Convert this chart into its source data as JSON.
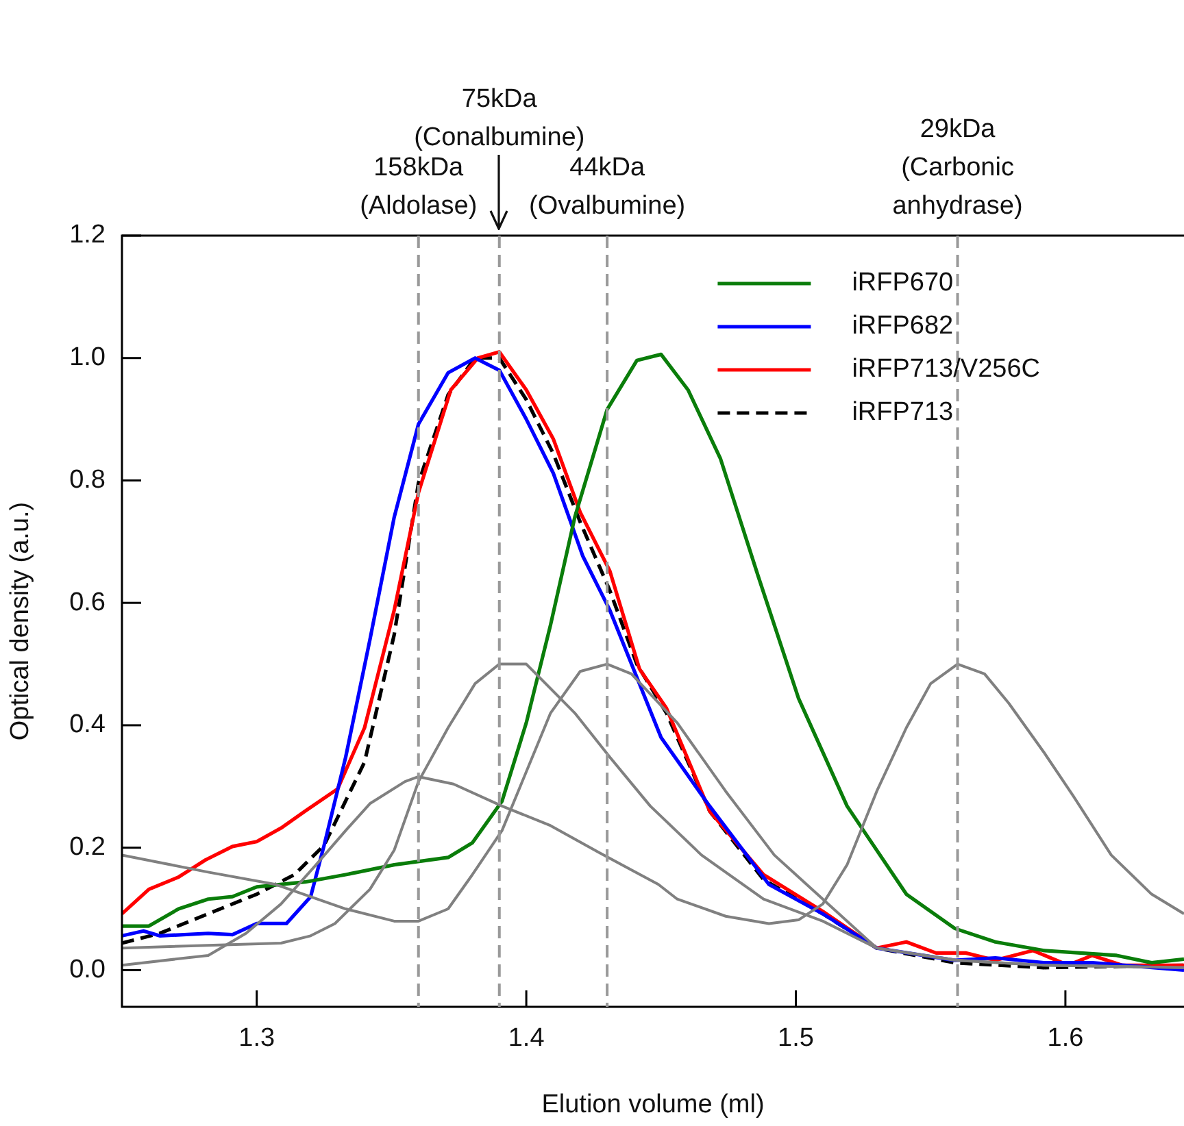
{
  "chart_data": {
    "type": "line",
    "xlabel": "Elution volume (ml)",
    "ylabel": "Optical density (a.u.)",
    "xlim": [
      1.25,
      1.644
    ],
    "ylim": [
      -0.06,
      1.2
    ],
    "xticks": [
      1.3,
      1.4,
      1.5,
      1.6
    ],
    "yticks": [
      {
        "value": 0,
        "label": "0.0"
      },
      {
        "value": 0.2,
        "label": "0.2"
      },
      {
        "value": 0.4,
        "label": "0.4"
      },
      {
        "value": 0.6,
        "label": "0.6"
      },
      {
        "value": 0.8,
        "label": "0.8"
      },
      {
        "value": 1,
        "label": "1.0"
      },
      {
        "value": 1.2,
        "label": "1.2"
      }
    ],
    "grid": false,
    "legend": "top right",
    "marker": "none",
    "ref_lines": [
      {
        "axis": "x",
        "value": 1.36,
        "label": "158kDa\n(Aldolase)",
        "color": "#999999",
        "line_style": "dashed"
      },
      {
        "axis": "x",
        "value": 1.39,
        "label": "75kDa\n(Conalbumine)",
        "color": "#999999",
        "line_style": "dashed"
      },
      {
        "axis": "x",
        "value": 1.43,
        "label": "44kDa\n(Ovalbumine)",
        "color": "#999999",
        "line_style": "dashed"
      },
      {
        "axis": "x",
        "value": 1.56,
        "label": "29kDa\n(Carbonic\nanhydrase)",
        "color": "#999999",
        "line_style": "dashed"
      }
    ],
    "series": [
      {
        "color": "#808080",
        "x": [
          1.25,
          1.282,
          1.296,
          1.309,
          1.322,
          1.333,
          1.342,
          1.355,
          1.36,
          1.373,
          1.391,
          1.409,
          1.427,
          1.449,
          1.456,
          1.474,
          1.49,
          1.501,
          1.51,
          1.519,
          1.53,
          1.541,
          1.55,
          1.56,
          1.57,
          1.579,
          1.592,
          1.603,
          1.617,
          1.632,
          1.644
        ],
        "values": [
          0.008,
          0.024,
          0.06,
          0.108,
          0.172,
          0.228,
          0.272,
          0.308,
          0.316,
          0.304,
          0.268,
          0.236,
          0.192,
          0.14,
          0.116,
          0.088,
          0.076,
          0.082,
          0.108,
          0.172,
          0.292,
          0.396,
          0.468,
          0.5,
          0.484,
          0.436,
          0.356,
          0.284,
          0.188,
          0.124,
          0.092
        ]
      },
      {
        "color": "#808080",
        "x": [
          1.25,
          1.309,
          1.32,
          1.329,
          1.342,
          1.351,
          1.36,
          1.371,
          1.381,
          1.39,
          1.4,
          1.418,
          1.431,
          1.446,
          1.465,
          1.488,
          1.51,
          1.53,
          1.56,
          1.592,
          1.644
        ],
        "values": [
          0.036,
          0.044,
          0.056,
          0.076,
          0.132,
          0.196,
          0.308,
          0.396,
          0.468,
          0.5,
          0.5,
          0.42,
          0.348,
          0.268,
          0.188,
          0.116,
          0.08,
          0.036,
          0.016,
          0.008,
          0.004
        ]
      },
      {
        "color": "#808080",
        "x": [
          1.25,
          1.282,
          1.307,
          1.333,
          1.351,
          1.36,
          1.371,
          1.38,
          1.391,
          1.4,
          1.409,
          1.42,
          1.43,
          1.439,
          1.456,
          1.474,
          1.492,
          1.51,
          1.53,
          1.559,
          1.592,
          1.644
        ],
        "values": [
          0.188,
          0.16,
          0.14,
          0.1,
          0.08,
          0.08,
          0.1,
          0.156,
          0.228,
          0.324,
          0.42,
          0.488,
          0.5,
          0.484,
          0.404,
          0.292,
          0.188,
          0.116,
          0.036,
          0.016,
          0.008,
          0.004
        ]
      },
      {
        "name": "iRFP670",
        "color": "#0a7d0a",
        "x": [
          1.25,
          1.26,
          1.271,
          1.282,
          1.291,
          1.3,
          1.318,
          1.333,
          1.351,
          1.371,
          1.38,
          1.391,
          1.4,
          1.409,
          1.418,
          1.43,
          1.441,
          1.45,
          1.46,
          1.472,
          1.486,
          1.501,
          1.519,
          1.541,
          1.559,
          1.574,
          1.592,
          1.619,
          1.632,
          1.644
        ],
        "values": [
          0.072,
          0.072,
          0.1,
          0.116,
          0.12,
          0.136,
          0.144,
          0.156,
          0.172,
          0.184,
          0.208,
          0.276,
          0.404,
          0.564,
          0.74,
          0.916,
          0.996,
          1.006,
          0.948,
          0.836,
          0.644,
          0.444,
          0.268,
          0.124,
          0.068,
          0.046,
          0.032,
          0.024,
          0.012,
          0.018
        ]
      },
      {
        "name": "iRFP682",
        "color": "#0000ff",
        "x": [
          1.25,
          1.258,
          1.264,
          1.282,
          1.291,
          1.3,
          1.311,
          1.32,
          1.325,
          1.333,
          1.342,
          1.351,
          1.36,
          1.371,
          1.381,
          1.39,
          1.4,
          1.41,
          1.421,
          1.431,
          1.45,
          1.468,
          1.49,
          1.51,
          1.53,
          1.559,
          1.574,
          1.592,
          1.61,
          1.644
        ],
        "values": [
          0.056,
          0.064,
          0.056,
          0.06,
          0.058,
          0.076,
          0.076,
          0.12,
          0.204,
          0.348,
          0.54,
          0.74,
          0.892,
          0.976,
          1,
          0.98,
          0.9,
          0.812,
          0.676,
          0.588,
          0.38,
          0.268,
          0.14,
          0.092,
          0.036,
          0.016,
          0.02,
          0.012,
          0.012,
          0
        ]
      },
      {
        "name": "iRFP713/V256C",
        "color": "#ff0000",
        "x": [
          1.25,
          1.26,
          1.271,
          1.281,
          1.291,
          1.3,
          1.309,
          1.318,
          1.33,
          1.34,
          1.351,
          1.36,
          1.372,
          1.382,
          1.39,
          1.4,
          1.41,
          1.42,
          1.431,
          1.442,
          1.452,
          1.468,
          1.488,
          1.51,
          1.53,
          1.541,
          1.552,
          1.563,
          1.574,
          1.588,
          1.601,
          1.61,
          1.621,
          1.644
        ],
        "values": [
          0.092,
          0.132,
          0.152,
          0.18,
          0.202,
          0.21,
          0.232,
          0.26,
          0.296,
          0.396,
          0.588,
          0.78,
          0.948,
          1,
          1.01,
          0.948,
          0.868,
          0.748,
          0.652,
          0.492,
          0.428,
          0.26,
          0.156,
          0.096,
          0.036,
          0.046,
          0.028,
          0.028,
          0.016,
          0.032,
          0.008,
          0.024,
          0.008,
          0.008
        ]
      },
      {
        "name": "iRFP713",
        "color": "#000000",
        "line_style": "dashed",
        "x": [
          1.25,
          1.264,
          1.282,
          1.3,
          1.314,
          1.325,
          1.34,
          1.351,
          1.36,
          1.371,
          1.381,
          1.39,
          1.4,
          1.41,
          1.42,
          1.431,
          1.441,
          1.452,
          1.468,
          1.488,
          1.51,
          1.53,
          1.559,
          1.592,
          1.644
        ],
        "values": [
          0.044,
          0.06,
          0.092,
          0.124,
          0.156,
          0.204,
          0.34,
          0.548,
          0.796,
          0.94,
          1,
          1,
          0.932,
          0.844,
          0.732,
          0.62,
          0.5,
          0.42,
          0.26,
          0.148,
          0.092,
          0.036,
          0.012,
          0.004,
          0.008
        ]
      }
    ]
  }
}
